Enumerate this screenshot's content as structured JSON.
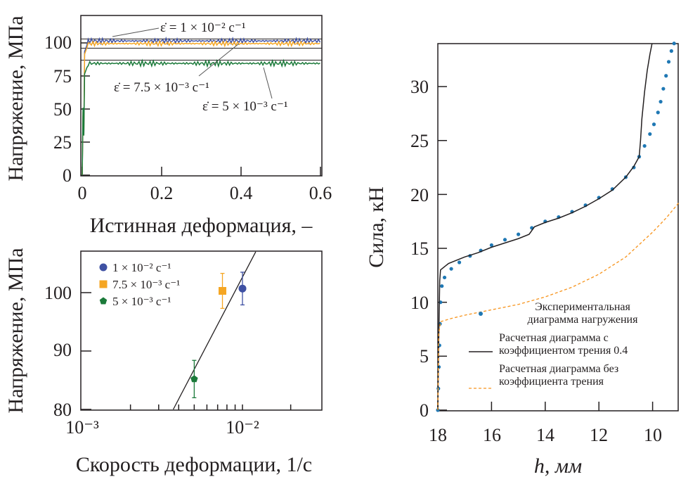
{
  "chart_data": [
    {
      "type": "line",
      "xlabel": "Истинная деформация, –",
      "ylabel": "Напряжение, МПа",
      "xlim": [
        0,
        0.6
      ],
      "ylim": [
        0,
        120
      ],
      "xticks": [
        "0",
        "0.2",
        "0.4",
        "0.6"
      ],
      "yticks": [
        "0",
        "25",
        "50",
        "75",
        "100"
      ],
      "reference_lines": [
        103,
        96,
        87
      ],
      "series": [
        {
          "color": "#3f51a3",
          "plateau": 101.5,
          "amplitude": 2
        },
        {
          "color": "#f5a623",
          "plateau": 99.5,
          "amplitude": 1.8
        },
        {
          "color": "#1b7a3a",
          "plateau": 84.5,
          "amplitude": 2.2
        }
      ],
      "annotations": [
        "ε̇ = 1 × 10⁻² c⁻¹",
        "ε̇ = 7.5 × 10⁻³ c⁻¹",
        "ε̇ = 5 × 10⁻³ c⁻¹"
      ]
    },
    {
      "type": "scatter",
      "xscale": "log",
      "xlabel": "Скорость деформации, 1/c",
      "ylabel": "Напряжение, МПа",
      "xlim": [
        0.001,
        0.03
      ],
      "ylim": [
        80,
        107
      ],
      "xticks": [
        "10⁻³",
        "10⁻²"
      ],
      "yticks": [
        "80",
        "90",
        "100"
      ],
      "legend": "top-left",
      "points": [
        {
          "name": "1 × 10⁻² c⁻¹",
          "x": 0.01,
          "y": 100.7,
          "err": 2.8,
          "color": "#3f51a3",
          "marker": "circle"
        },
        {
          "name": "7.5 × 10⁻³ c⁻¹",
          "x": 0.0075,
          "y": 100.3,
          "err": 3.0,
          "color": "#f5a623",
          "marker": "square"
        },
        {
          "name": "5 × 10⁻³ c⁻¹",
          "x": 0.005,
          "y": 85.2,
          "err": 3.2,
          "color": "#1b7a3a",
          "marker": "pentagon"
        }
      ],
      "fit_line": [
        [
          0.0037,
          80
        ],
        [
          0.0121,
          107
        ]
      ]
    },
    {
      "type": "line",
      "xlabel": "h, мм",
      "ylabel": "Сила, кН",
      "xlim": [
        18,
        9
      ],
      "ylim": [
        0,
        34
      ],
      "xticks": [
        "18",
        "16",
        "14",
        "12",
        "10"
      ],
      "yticks": [
        "0",
        "5",
        "10",
        "15",
        "20",
        "25",
        "30"
      ],
      "legend": "bottom-right",
      "series": [
        {
          "name": "Экспериментальная диаграмма нагружения",
          "color": "#1f78b4",
          "style": "dots",
          "x": [
            18,
            17.98,
            17.96,
            17.94,
            17.92,
            17.9,
            17.85,
            17.75,
            17.5,
            17.2,
            16.8,
            16.4,
            16,
            15.5,
            15,
            14.5,
            14,
            13.5,
            13,
            12.5,
            12,
            11.5,
            11,
            10.7,
            10.5,
            10.3,
            10.1,
            9.95,
            9.8,
            9.7,
            9.6,
            9.5,
            9.4,
            9.3,
            9.2
          ],
          "y": [
            0,
            2,
            4,
            6,
            8,
            10,
            11.5,
            12.3,
            13.1,
            13.7,
            14.3,
            14.8,
            15.3,
            15.8,
            16.3,
            16.9,
            17.5,
            17.9,
            18.4,
            19,
            19.7,
            20.5,
            21.6,
            22.5,
            23.5,
            24.5,
            25.6,
            26.5,
            27.6,
            28.6,
            29.8,
            31,
            32.3,
            33.3,
            34
          ]
        },
        {
          "name": "Расчетная диаграмма с коэффициентом трения 0.4",
          "color": "#231f20",
          "style": "solid",
          "x": [
            18,
            17.97,
            17.93,
            17.9,
            17.6,
            17,
            16.5,
            16,
            15.5,
            15,
            14.6,
            14.4,
            14,
            13.5,
            13,
            12.5,
            12,
            11.5,
            11,
            10.7,
            10.5,
            10.45,
            10.4,
            10.3,
            10.2,
            10.1,
            10.02
          ],
          "y": [
            0,
            6,
            12,
            13,
            13.6,
            14.2,
            14.6,
            15.1,
            15.5,
            15.9,
            16.3,
            17,
            17.4,
            17.8,
            18.3,
            18.9,
            19.6,
            20.4,
            21.6,
            22.6,
            23.5,
            25,
            27,
            29.5,
            31.5,
            33,
            34
          ]
        },
        {
          "name": "Расчетная диаграмма без коэффициента трения",
          "color": "#f7941d",
          "style": "dashed",
          "x": [
            18,
            17.97,
            17.9,
            17.5,
            17,
            16,
            15,
            14,
            13,
            12,
            11,
            10,
            9.5,
            9
          ],
          "y": [
            0,
            7,
            8.2,
            8.5,
            8.8,
            9.3,
            9.8,
            10.5,
            11.4,
            12.6,
            14.2,
            16.5,
            17.8,
            19.3
          ]
        }
      ]
    }
  ]
}
